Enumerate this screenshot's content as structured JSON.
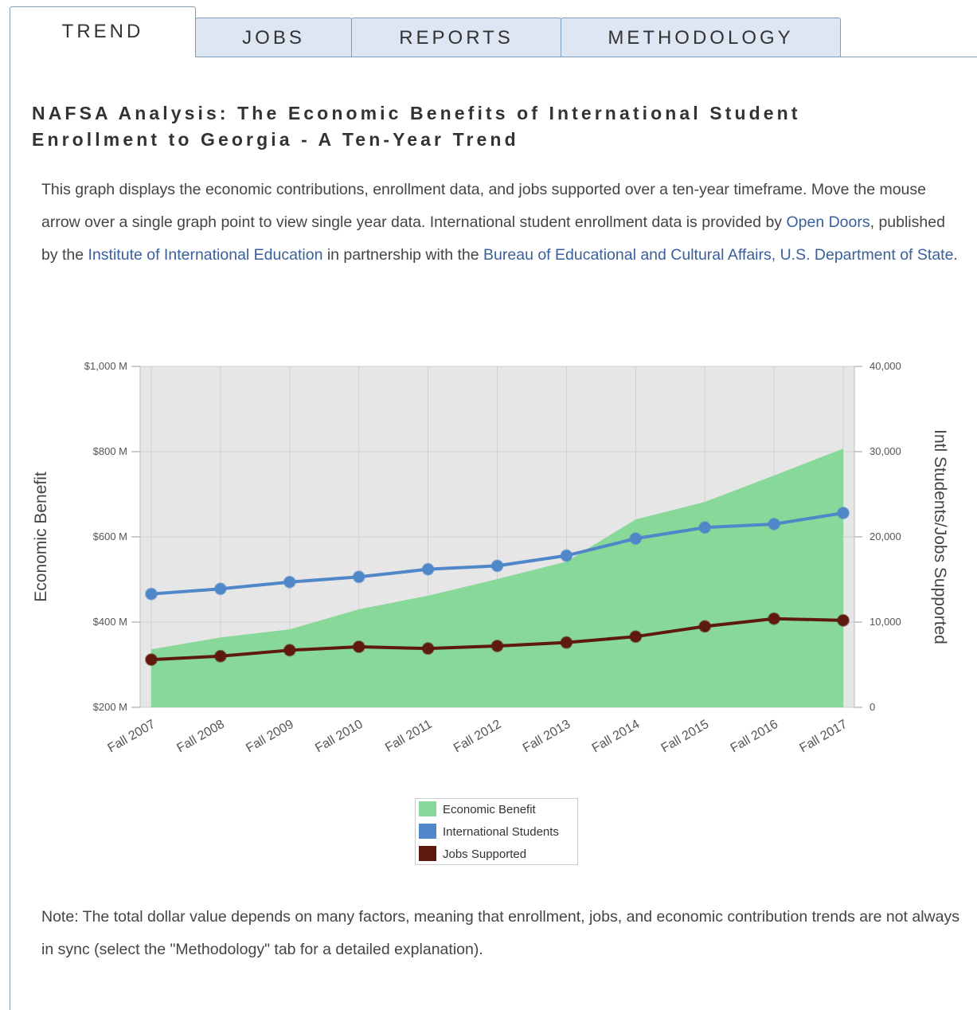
{
  "tabs": [
    "TREND",
    "JOBS",
    "REPORTS",
    "METHODOLOGY"
  ],
  "active_tab": 0,
  "heading": "NAFSA Analysis: The Economic Benefits of International Student Enrollment to Georgia - A Ten-Year Trend",
  "description": [
    "This graph displays the economic contributions, enrollment data, and jobs supported over a ten-year timeframe. Move the mouse arrow over a single graph point to view single year data. International student enrollment data is provided by ",
    {
      "link": "Open Doors"
    },
    ", published by the ",
    {
      "link": "Institute of International Education"
    },
    " in partnership with the ",
    {
      "link": "Bureau of Educational and Cultural Affairs, U.S. Department of State"
    },
    "."
  ],
  "chart_data": {
    "type": "line",
    "ylabel": "Economic Benefit",
    "y2label": "Intl Students/Jobs Supported",
    "categories": [
      "Fall 2007",
      "Fall 2008",
      "Fall 2009",
      "Fall 2010",
      "Fall 2011",
      "Fall 2012",
      "Fall 2013",
      "Fall 2014",
      "Fall 2015",
      "Fall 2016",
      "Fall 2017"
    ],
    "ylim": [
      200,
      1000
    ],
    "yticks": [
      {
        "value": 200,
        "label": "$200 M"
      },
      {
        "value": 400,
        "label": "$400 M"
      },
      {
        "value": 600,
        "label": "$600 M"
      },
      {
        "value": 800,
        "label": "$800 M"
      },
      {
        "value": 1000,
        "label": "$1,000 M"
      }
    ],
    "y2lim": [
      0,
      40000
    ],
    "y2ticks": [
      0,
      {
        "value": 10000,
        "label": "10,000"
      },
      {
        "value": 20000,
        "label": "20,000"
      },
      {
        "value": 30000,
        "label": "30,000"
      },
      {
        "value": 40000,
        "label": "40,000"
      }
    ],
    "grid": true,
    "series": [
      {
        "name": "Economic Benefit",
        "type": "area",
        "color": "#88d899",
        "values": [
          336,
          364,
          383,
          430,
          462,
          501,
          542,
          641,
          682,
          744,
          807
        ]
      },
      {
        "name": "International Students",
        "type": "line",
        "axis": "y2",
        "color": "#4f87c8",
        "values": [
          13300,
          13900,
          14700,
          15300,
          16200,
          16600,
          17800,
          19800,
          21100,
          21500,
          22800
        ]
      },
      {
        "name": "Jobs Supported",
        "type": "line",
        "axis": "y2",
        "color": "#5e1a0e",
        "values": [
          5600,
          6000,
          6700,
          7100,
          6900,
          7200,
          7600,
          8300,
          9500,
          10400,
          10200
        ]
      }
    ]
  },
  "note": "Note: The total dollar value depends on many factors, meaning that enrollment, jobs, and economic contribution trends are not always in sync (select the \"Methodology\" tab for a detailed explanation)."
}
